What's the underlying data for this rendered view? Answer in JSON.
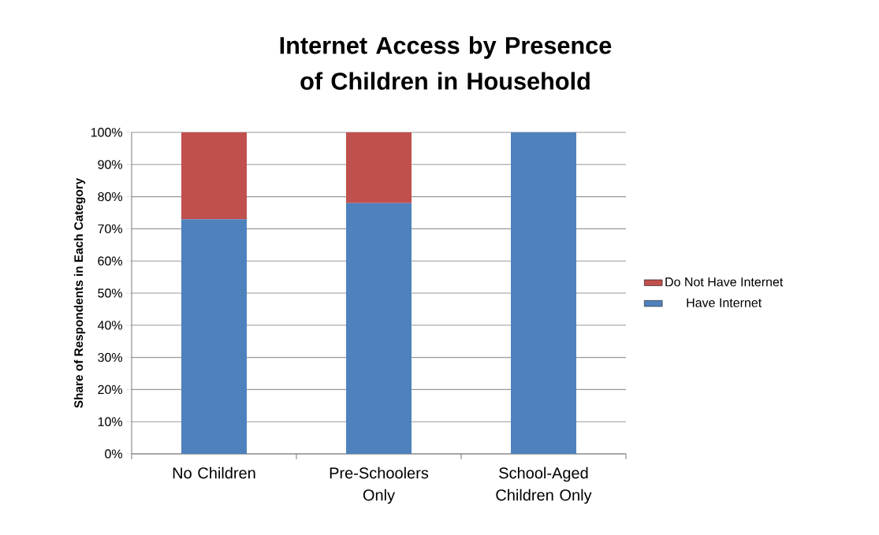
{
  "chart_data": {
    "type": "bar",
    "title": "Internet Access by Presence of Children in Household",
    "ylabel": "Share of Respondents in Each Category",
    "categories": [
      "No Children",
      "Pre-Schoolers Only",
      "School-Aged Children Only"
    ],
    "stacked": true,
    "series": [
      {
        "name": "Have Internet",
        "color": "#4f81bd",
        "values": [
          73,
          78,
          100
        ]
      },
      {
        "name": "Do Not  Have Internet",
        "color": "#c0504d",
        "values": [
          27,
          22,
          0
        ]
      }
    ],
    "ylim": [
      0,
      100
    ],
    "yticks": [
      {
        "value": 0,
        "label": "0%"
      },
      {
        "value": 10,
        "label": "10%"
      },
      {
        "value": 20,
        "label": "20%"
      },
      {
        "value": 30,
        "label": "30%"
      },
      {
        "value": 40,
        "label": "40%"
      },
      {
        "value": 50,
        "label": "50%"
      },
      {
        "value": 60,
        "label": "60%"
      },
      {
        "value": 70,
        "label": "70%"
      },
      {
        "value": 80,
        "label": "80%"
      },
      {
        "value": 90,
        "label": "90%"
      },
      {
        "value": 100,
        "label": "100%"
      }
    ],
    "grid": "y",
    "legend": "right"
  }
}
